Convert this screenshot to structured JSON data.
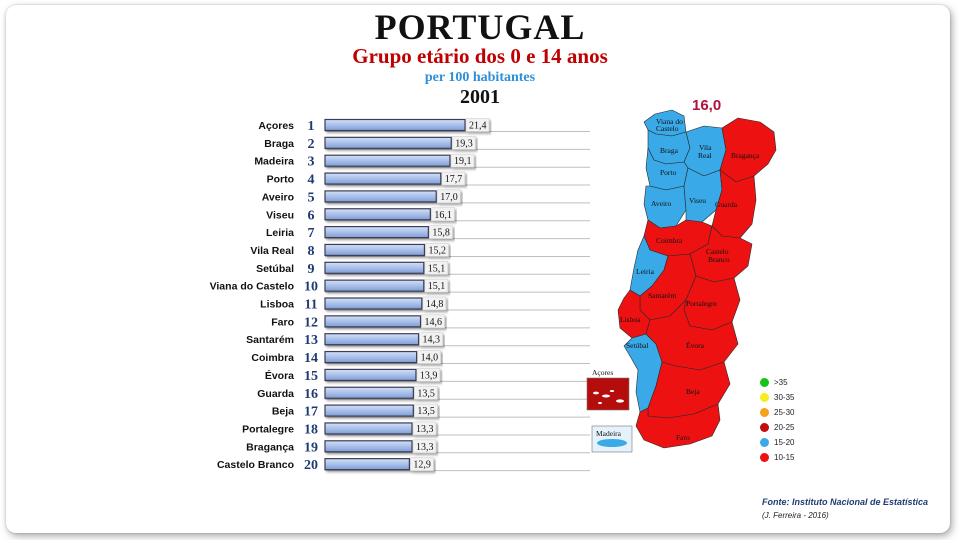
{
  "title": "PORTUGAL",
  "subtitle": "Grupo etário dos 0 e 14 anos",
  "unit": "per 100 habitantes",
  "year": "2001",
  "chart_data": {
    "type": "bar",
    "orientation": "horizontal",
    "categories": [
      "Açores",
      "Braga",
      "Madeira",
      "Porto",
      "Aveiro",
      "Viseu",
      "Leiria",
      "Vila Real",
      "Setúbal",
      "Viana do Castelo",
      "Lisboa",
      "Faro",
      "Santarém",
      "Coimbra",
      "Évora",
      "Guarda",
      "Beja",
      "Portalegre",
      "Bragança",
      "Castelo Branco"
    ],
    "ranks": [
      "1",
      "2",
      "3",
      "4",
      "5",
      "6",
      "7",
      "8",
      "9",
      "10",
      "11",
      "12",
      "13",
      "14",
      "15",
      "16",
      "17",
      "18",
      "19",
      "20"
    ],
    "values": [
      21.4,
      19.3,
      19.1,
      17.7,
      17.0,
      16.1,
      15.8,
      15.2,
      15.1,
      15.1,
      14.8,
      14.6,
      14.3,
      14.0,
      13.9,
      13.5,
      13.5,
      13.3,
      13.3,
      12.9
    ],
    "value_labels": [
      "21,4",
      "19,3",
      "19,1",
      "17,7",
      "17,0",
      "16,1",
      "15,8",
      "15,2",
      "15,1",
      "15,1",
      "14,8",
      "14,6",
      "14,3",
      "14,0",
      "13,9",
      "13,5",
      "13,5",
      "13,3",
      "13,3",
      "12,9"
    ],
    "xlim": [
      0,
      21.4
    ],
    "grid": true,
    "bar_color": "#a9c0ea"
  },
  "map": {
    "national_value": "16,0",
    "districts": [
      "Viana do Castelo",
      "Braga",
      "Vila Real",
      "Bragança",
      "Porto",
      "Aveiro",
      "Viseu",
      "Guarda",
      "Coimbra",
      "Castelo Branco",
      "Leiria",
      "Santarém",
      "Portalegre",
      "Lisboa",
      "Setúbal",
      "Évora",
      "Beja",
      "Faro"
    ],
    "islands": [
      "Açores",
      "Madeira"
    ],
    "colors": {
      "blue": "#3aa9e8",
      "red": "#ee1111"
    }
  },
  "legend": [
    {
      "label": ">35",
      "color": "#19c219"
    },
    {
      "label": "30-35",
      "color": "#f5ee1c"
    },
    {
      "label": "25-30",
      "color": "#f5a31c"
    },
    {
      "label": "20-25",
      "color": "#c40d0d"
    },
    {
      "label": "15-20",
      "color": "#3aa9e8"
    },
    {
      "label": "10-15",
      "color": "#ee1111"
    }
  ],
  "source": "Fonte: Instituto Nacional de Estatística",
  "author": "(J. Ferreira - 2016)"
}
